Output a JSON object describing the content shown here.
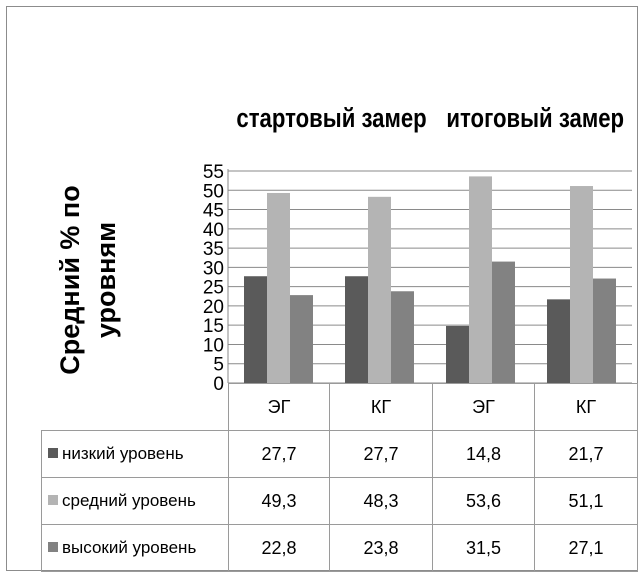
{
  "chart_data": {
    "type": "bar",
    "title": "",
    "group_labels": [
      "стартовый замер",
      "итоговый замер"
    ],
    "ylabel": "Средний % по уровням",
    "xlabel": "",
    "categories": [
      "ЭГ",
      "КГ",
      "ЭГ",
      "КГ"
    ],
    "ylim": [
      0,
      55
    ],
    "yticks": [
      "0",
      "5",
      "10",
      "15",
      "20",
      "25",
      "30",
      "35",
      "40",
      "45",
      "50",
      "55"
    ],
    "grid": true,
    "legend": "data-table",
    "series": [
      {
        "name": "низкий уровень",
        "color": "#5a5a5a",
        "values": [
          27.7,
          27.7,
          14.8,
          21.7
        ],
        "labels": [
          "27,7",
          "27,7",
          "14,8",
          "21,7"
        ]
      },
      {
        "name": "средний уровень",
        "color": "#b4b4b4",
        "values": [
          49.3,
          48.3,
          53.6,
          51.1
        ],
        "labels": [
          "49,3",
          "48,3",
          "53,6",
          "51,1"
        ]
      },
      {
        "name": "высокий уровень",
        "color": "#828282",
        "values": [
          22.8,
          23.8,
          31.5,
          27.1
        ],
        "labels": [
          "22,8",
          "23,8",
          "31,5",
          "27,1"
        ]
      }
    ]
  }
}
